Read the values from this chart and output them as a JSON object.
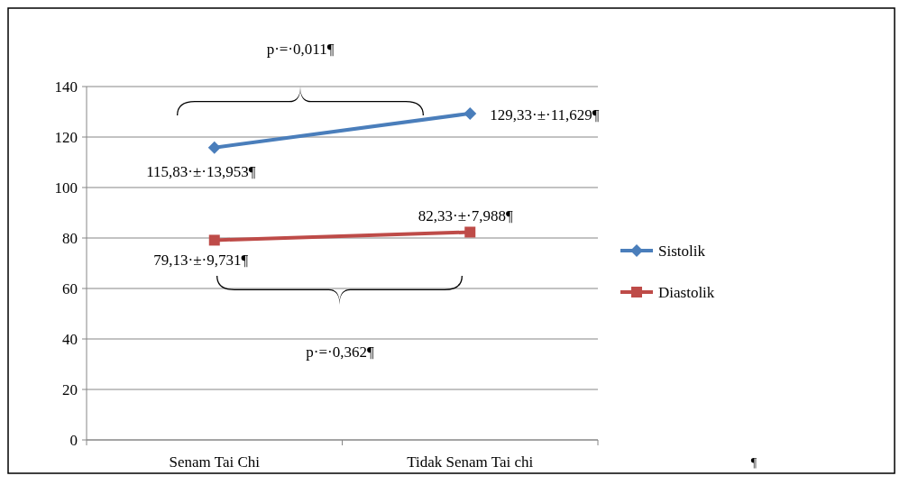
{
  "chart_data": {
    "type": "line",
    "categories": [
      "Senam Tai Chi",
      "Tidak Senam Tai chi"
    ],
    "series": [
      {
        "name": "Sistolik",
        "color": "#4a7ebb",
        "values": [
          115.83,
          129.33
        ],
        "marker": "diamond",
        "value_labels": [
          "115,83·±·13,953¶",
          "129,33·±·11,629¶"
        ]
      },
      {
        "name": "Diastolik",
        "color": "#be4b48",
        "values": [
          79.13,
          82.33
        ],
        "marker": "square",
        "value_labels": [
          "79,13·±·9,731¶",
          "82,33·±·7,988¶"
        ]
      }
    ],
    "ylim": [
      0,
      140
    ],
    "yticks": [
      0,
      20,
      40,
      60,
      80,
      100,
      120,
      140
    ],
    "grid": "y",
    "legend": "right",
    "annotations": [
      "p·=·0,011¶",
      "p·=·0,362¶",
      "¶"
    ]
  }
}
